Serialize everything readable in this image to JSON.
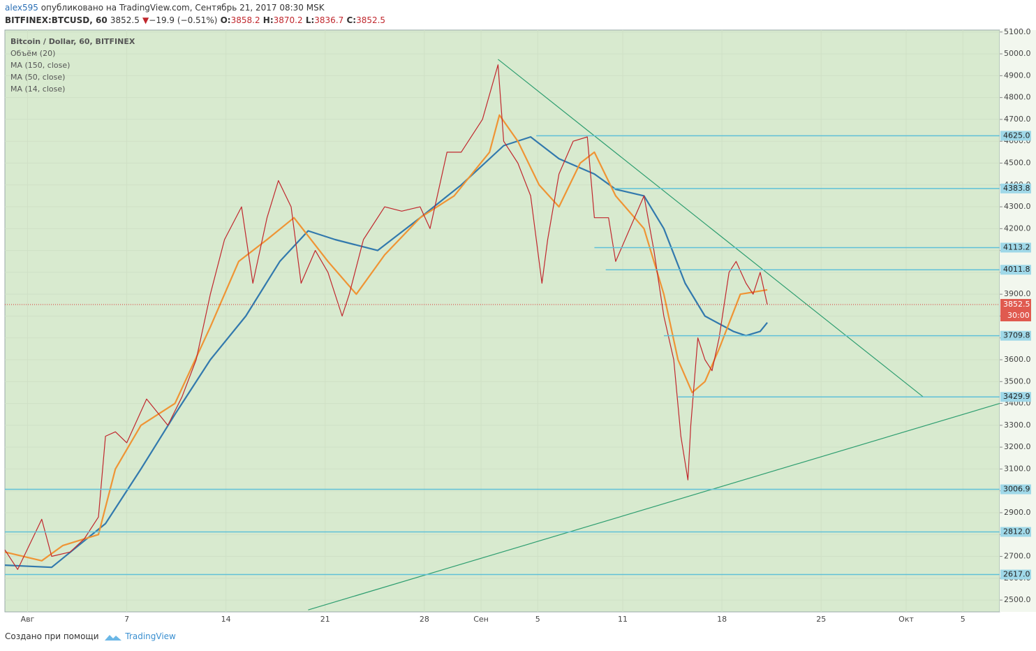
{
  "header": {
    "author": "alex595",
    "published": "опубликовано на TradingView.com, Сентябрь 21, 2017 08:30 MSK",
    "symbol": "BITFINEX:BTCUSD, 60",
    "last": "3852.5",
    "arrow": "▼",
    "change": "−19.9 (−0.51%)",
    "open_label": "O:",
    "open": "3858.2",
    "high_label": "H:",
    "high": "3870.2",
    "low_label": "L:",
    "low": "3836.7",
    "close_label": "C:",
    "close": "3852.5"
  },
  "chart_data": {
    "type": "line",
    "title": "Bitcoin / Dollar, 60, BITFINEX",
    "indicators": [
      "Объём (20)"
    ],
    "xlim": [
      -1.6,
      68.6
    ],
    "ylim": [
      2446,
      5109
    ],
    "xticks": [
      {
        "value": 0,
        "label": "Авг"
      },
      7,
      14,
      21,
      28,
      {
        "value": 32,
        "label": "Сен"
      },
      {
        "value": 36,
        "label": "5"
      },
      {
        "value": 42,
        "label": "11"
      },
      {
        "value": 49,
        "label": "18"
      },
      {
        "value": 56,
        "label": "25"
      },
      {
        "value": 62,
        "label": "Окт"
      },
      {
        "value": 66,
        "label": "5"
      }
    ],
    "yticks": [
      {
        "value": 2500,
        "label": "2500.0"
      },
      {
        "value": 2600,
        "label": "2600.0"
      },
      {
        "value": 2700,
        "label": "2700.0"
      },
      {
        "value": 2800,
        "label": "2800.0"
      },
      {
        "value": 2900,
        "label": "2900.0"
      },
      {
        "value": 3000,
        "label": "3000.0"
      },
      {
        "value": 3100,
        "label": "3100.0"
      },
      {
        "value": 3200,
        "label": "3200.0"
      },
      {
        "value": 3300,
        "label": "3300.0"
      },
      {
        "value": 3400,
        "label": "3400.0"
      },
      {
        "value": 3500,
        "label": "3500.0"
      },
      {
        "value": 3600,
        "label": "3600.0"
      },
      {
        "value": 3700,
        "label": "3700.0"
      },
      {
        "value": 3800,
        "label": "3800.0"
      },
      {
        "value": 3900,
        "label": "3900.0"
      },
      {
        "value": 4000,
        "label": "4000.0"
      },
      {
        "value": 4100,
        "label": "4100.0"
      },
      {
        "value": 4200,
        "label": "4200.0"
      },
      {
        "value": 4300,
        "label": "4300.0"
      },
      {
        "value": 4400,
        "label": "4400.0"
      },
      {
        "value": 4500,
        "label": "4500.0"
      },
      {
        "value": 4600,
        "label": "4600.0"
      },
      {
        "value": 4700,
        "label": "4700.0"
      },
      {
        "value": 4800,
        "label": "4800.0"
      },
      {
        "value": 4900,
        "label": "4900.0"
      },
      {
        "value": 5000,
        "label": "5000.0"
      },
      {
        "value": 5100,
        "label": "5100.0"
      }
    ],
    "series": [
      {
        "name": "MA (150, close)",
        "color": "#3279ad",
        "x": [
          -1.6,
          1.7,
          5.5,
          8.0,
          10.4,
          12.9,
          15.4,
          17.8,
          19.8,
          21.7,
          24.7,
          27.7,
          30.6,
          33.6,
          35.5,
          37.5,
          40.0,
          41.5,
          43.5,
          44.9,
          46.4,
          47.8,
          49.8,
          50.7,
          51.7,
          52.2
        ],
        "values": [
          2660,
          2650,
          2850,
          3100,
          3350,
          3600,
          3800,
          4050,
          4190,
          4150,
          4100,
          4250,
          4400,
          4580,
          4620,
          4520,
          4450,
          4380,
          4350,
          4200,
          3950,
          3800,
          3730,
          3710,
          3730,
          3770
        ]
      },
      {
        "name": "MA (50, close)",
        "color": "#ef9434",
        "x": [
          -1.6,
          1.0,
          2.5,
          5.0,
          6.2,
          8.0,
          10.4,
          12.9,
          14.9,
          16.9,
          18.8,
          21.2,
          23.2,
          25.2,
          27.7,
          30.1,
          32.6,
          33.3,
          34.6,
          36.1,
          37.5,
          39.0,
          40.0,
          41.5,
          43.5,
          44.9,
          45.9,
          46.9,
          47.8,
          48.8,
          50.3,
          52.2
        ],
        "values": [
          2720,
          2680,
          2750,
          2800,
          3100,
          3300,
          3400,
          3750,
          4050,
          4150,
          4250,
          4050,
          3900,
          4080,
          4250,
          4350,
          4550,
          4720,
          4600,
          4400,
          4300,
          4500,
          4550,
          4350,
          4200,
          3900,
          3600,
          3450,
          3500,
          3650,
          3900,
          3920
        ]
      },
      {
        "name": "MA (14, close)",
        "color": "#c0272d",
        "x": [
          -1.6,
          -0.7,
          1.0,
          1.7,
          3.0,
          4.0,
          5.0,
          5.5,
          6.2,
          7.0,
          8.4,
          9.9,
          10.9,
          11.9,
          12.9,
          13.9,
          15.1,
          15.9,
          16.9,
          17.7,
          18.6,
          19.3,
          20.3,
          21.2,
          22.2,
          22.7,
          23.7,
          25.2,
          26.4,
          27.7,
          28.4,
          29.6,
          30.6,
          32.1,
          33.2,
          33.6,
          34.6,
          35.5,
          36.3,
          36.7,
          37.5,
          38.5,
          39.5,
          40.0,
          41.0,
          41.5,
          42.5,
          43.5,
          44.2,
          44.9,
          45.6,
          46.1,
          46.6,
          46.8,
          47.3,
          47.8,
          48.3,
          48.8,
          49.5,
          50.0,
          50.7,
          51.2,
          51.7,
          52.2
        ],
        "values": [
          2730,
          2640,
          2870,
          2700,
          2720,
          2780,
          2880,
          3250,
          3270,
          3220,
          3420,
          3300,
          3430,
          3600,
          3900,
          4150,
          4300,
          3950,
          4250,
          4420,
          4300,
          3950,
          4100,
          4000,
          3800,
          3900,
          4150,
          4300,
          4280,
          4300,
          4200,
          4550,
          4550,
          4700,
          4950,
          4600,
          4500,
          4350,
          3950,
          4150,
          4450,
          4600,
          4620,
          4250,
          4250,
          4050,
          4200,
          4350,
          4100,
          3800,
          3600,
          3250,
          3050,
          3300,
          3700,
          3600,
          3550,
          3700,
          4000,
          4050,
          3950,
          3900,
          4000,
          3852.5
        ]
      }
    ],
    "levels": [
      {
        "value": 4625,
        "label": "4625.0",
        "from": 35.9
      },
      {
        "value": 4383.8,
        "label": "4383.8",
        "from": 41.3
      },
      {
        "value": 4113.2,
        "label": "4113.2",
        "from": 40.0
      },
      {
        "value": 4011.8,
        "label": "4011.8",
        "from": 40.8
      },
      {
        "value": 3709.8,
        "label": "3709.8",
        "from": 44.9
      },
      {
        "value": 3429.9,
        "label": "3429.9",
        "from": 45.9
      },
      {
        "value": 3006.9,
        "label": "3006.9",
        "from": -1.6
      },
      {
        "value": 2812,
        "label": "2812.0",
        "from": -1.6
      },
      {
        "value": 2617,
        "label": "2617.0",
        "from": -1.6
      }
    ],
    "trendlines": [
      {
        "x": [
          33.2,
          63.2
        ],
        "values": [
          4975,
          3430
        ]
      },
      {
        "x": [
          19.8,
          68.6
        ],
        "values": [
          2455,
          3400
        ]
      }
    ],
    "last_price": 3852.5,
    "countdown": "30:00",
    "grid": true
  },
  "footer": {
    "text": "Создано при помощи",
    "brand": "TradingView"
  }
}
